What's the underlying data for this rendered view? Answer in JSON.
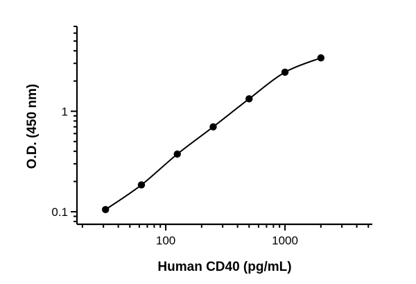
{
  "chart_data": {
    "type": "scatter",
    "title": "",
    "xlabel": "Human CD40 (pg/mL)",
    "ylabel": "O.D. (450 nm)",
    "xscale": "log",
    "yscale": "log",
    "xlim": [
      18,
      5400
    ],
    "ylim": [
      0.075,
      7.0
    ],
    "xticks": [
      100,
      1000
    ],
    "xtick_labels": [
      "100",
      "1000"
    ],
    "yticks": [
      0.1,
      1
    ],
    "ytick_labels": [
      "0.1",
      "1"
    ],
    "grid": false,
    "legend": "none",
    "fit_curve": true,
    "series": [
      {
        "x": [
          31.25,
          62.5,
          125,
          250,
          500,
          1000,
          2000
        ],
        "y": [
          0.105,
          0.185,
          0.375,
          0.7,
          1.33,
          2.45,
          3.4
        ]
      }
    ],
    "colors": {
      "points": "#000000",
      "curve": "#000000"
    }
  }
}
